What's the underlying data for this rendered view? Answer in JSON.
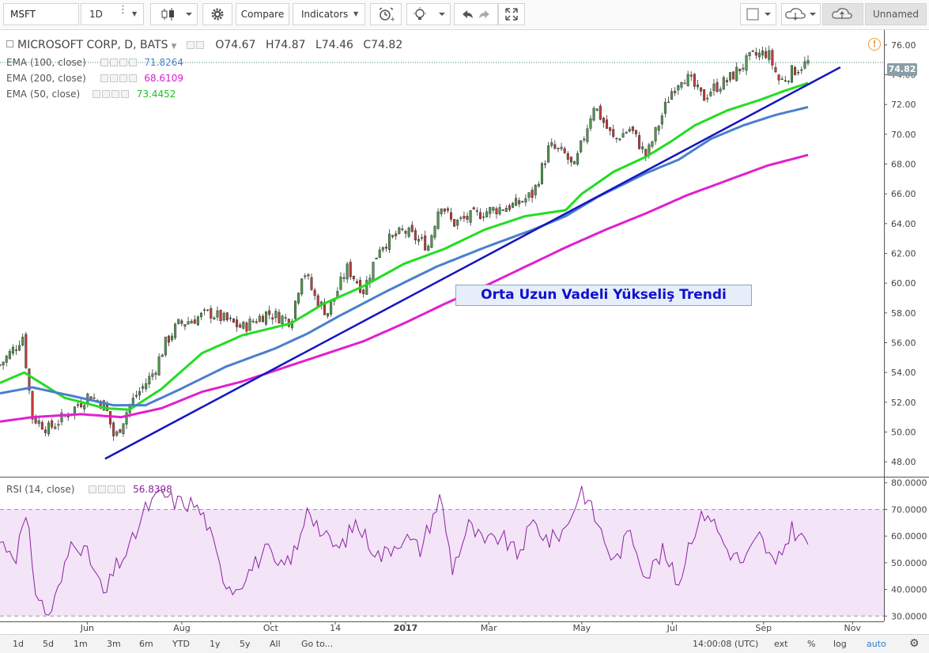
{
  "toolbar": {
    "symbol": "MSFT",
    "interval": "1D",
    "compare_label": "Compare",
    "indicators_label": "Indicators",
    "layout_name": "Unnamed"
  },
  "legend": {
    "main_title": "MICROSOFT CORP, D, BATS",
    "o_label": "O",
    "o_value": "74.67",
    "h_label": "H",
    "h_value": "74.87",
    "l_label": "L",
    "l_value": "74.46",
    "c_label": "C",
    "c_value": "74.82",
    "ema100_label": "EMA (100, close)",
    "ema100_value": "71.8264",
    "ema200_label": "EMA (200, close)",
    "ema200_value": "68.6109",
    "ema50_label": "EMA (50, close)",
    "ema50_value": "73.4452",
    "rsi_label": "RSI (14, close)",
    "rsi_value": "56.8398",
    "last_price_badge": "74.82"
  },
  "annotation": {
    "text": "Orta Uzun Vadeli Yükseliş Trendi"
  },
  "colors": {
    "ema50": "#22dd22",
    "ema100": "#4a7fcc",
    "ema200": "#e020d0",
    "trendline": "#1515c0",
    "rsi": "#8b22a0",
    "rsi_band": "#f3e4f8",
    "candle_up": "#4c9a4c",
    "candle_down": "#c33a3a"
  },
  "chart_data": [
    {
      "type": "candlestick",
      "title": "MICROSOFT CORP, D, BATS",
      "ylim": [
        47,
        77
      ],
      "yticks": [
        "48.00",
        "50.00",
        "52.00",
        "54.00",
        "56.00",
        "58.00",
        "60.00",
        "62.00",
        "64.00",
        "66.00",
        "68.00",
        "70.00",
        "72.00",
        "74.00",
        "76.00"
      ],
      "xticks": [
        "Jun",
        "Aug",
        "Oct",
        "14",
        "2017",
        "Mar",
        "May",
        "Jul",
        "Sep",
        "Nov"
      ],
      "price_anchors": {
        "x_frac": [
          0.0,
          0.02,
          0.028,
          0.04,
          0.06,
          0.09,
          0.11,
          0.13,
          0.142,
          0.16,
          0.19,
          0.205,
          0.22,
          0.26,
          0.28,
          0.3,
          0.33,
          0.36,
          0.375,
          0.39,
          0.405,
          0.43,
          0.45,
          0.47,
          0.5,
          0.53,
          0.545,
          0.56,
          0.6,
          0.64,
          0.66,
          0.68,
          0.7,
          0.71,
          0.735,
          0.75,
          0.76,
          0.78,
          0.8,
          0.83,
          0.845,
          0.855,
          0.87,
          0.88,
          0.9,
          0.93,
          0.95,
          0.965,
          0.98,
          1.0
        ],
        "close": [
          54.5,
          55.8,
          56.5,
          51.0,
          50.2,
          51.5,
          52.5,
          51.8,
          49.5,
          51.8,
          54.0,
          56.0,
          57.2,
          58.0,
          57.5,
          57.0,
          58.0,
          57.5,
          61.0,
          59.0,
          58.0,
          61.0,
          59.5,
          62.5,
          63.5,
          62.5,
          65.5,
          64.0,
          64.8,
          65.3,
          66.0,
          69.2,
          68.6,
          67.6,
          72.0,
          70.5,
          69.6,
          70.4,
          68.5,
          72.8,
          74.0,
          73.5,
          72.4,
          73.0,
          73.6,
          75.2,
          75.5,
          73.5,
          74.2,
          74.82
        ]
      },
      "series": [
        {
          "name": "EMA (50, close)",
          "x_frac": [
            0.0,
            0.03,
            0.08,
            0.13,
            0.16,
            0.2,
            0.25,
            0.3,
            0.36,
            0.4,
            0.45,
            0.5,
            0.55,
            0.6,
            0.65,
            0.7,
            0.72,
            0.76,
            0.8,
            0.83,
            0.86,
            0.9,
            0.94,
            0.97,
            1.0
          ],
          "values": [
            53.3,
            54.0,
            52.3,
            51.6,
            51.5,
            52.9,
            55.3,
            56.5,
            57.3,
            58.6,
            59.8,
            61.3,
            62.3,
            63.6,
            64.5,
            64.9,
            66.0,
            67.5,
            68.5,
            69.5,
            70.6,
            71.6,
            72.3,
            72.9,
            73.4452
          ]
        },
        {
          "name": "EMA (100, close)",
          "x_frac": [
            0.0,
            0.04,
            0.1,
            0.14,
            0.18,
            0.22,
            0.28,
            0.34,
            0.38,
            0.42,
            0.48,
            0.54,
            0.6,
            0.66,
            0.7,
            0.74,
            0.8,
            0.84,
            0.88,
            0.92,
            0.96,
            1.0
          ],
          "values": [
            52.6,
            53.0,
            52.3,
            51.8,
            51.8,
            52.8,
            54.4,
            55.6,
            56.6,
            57.8,
            59.5,
            61.1,
            62.4,
            63.6,
            64.5,
            65.8,
            67.4,
            68.3,
            69.7,
            70.6,
            71.3,
            71.8264
          ]
        },
        {
          "name": "EMA (200, close)",
          "x_frac": [
            0.0,
            0.04,
            0.1,
            0.15,
            0.2,
            0.25,
            0.3,
            0.35,
            0.4,
            0.45,
            0.5,
            0.55,
            0.6,
            0.65,
            0.7,
            0.75,
            0.8,
            0.85,
            0.9,
            0.95,
            1.0
          ],
          "values": [
            50.7,
            51.0,
            51.2,
            51.0,
            51.6,
            52.7,
            53.4,
            54.3,
            55.2,
            56.1,
            57.3,
            58.6,
            59.8,
            61.1,
            62.4,
            63.6,
            64.7,
            65.9,
            66.9,
            67.9,
            68.6109
          ]
        },
        {
          "name": "Trend line",
          "x_frac": [
            0.13,
            1.04
          ],
          "values": [
            48.2,
            74.5
          ]
        }
      ]
    },
    {
      "type": "line",
      "title": "RSI (14, close)",
      "ylim": [
        28,
        82
      ],
      "yticks": [
        "30.0000",
        "40.0000",
        "50.0000",
        "60.0000",
        "70.0000",
        "80.0000"
      ],
      "band": [
        30,
        70
      ],
      "series": [
        {
          "name": "RSI (14, close)",
          "x_frac": [
            0.0,
            0.02,
            0.03,
            0.035,
            0.045,
            0.06,
            0.075,
            0.09,
            0.11,
            0.13,
            0.142,
            0.16,
            0.18,
            0.2,
            0.215,
            0.24,
            0.255,
            0.275,
            0.29,
            0.33,
            0.345,
            0.37,
            0.38,
            0.4,
            0.42,
            0.44,
            0.47,
            0.5,
            0.52,
            0.545,
            0.56,
            0.58,
            0.6,
            0.62,
            0.64,
            0.66,
            0.68,
            0.7,
            0.72,
            0.735,
            0.76,
            0.78,
            0.8,
            0.82,
            0.84,
            0.855,
            0.875,
            0.9,
            0.92,
            0.94,
            0.96,
            0.98,
            1.0
          ],
          "values": [
            58,
            53,
            66,
            62,
            38,
            30,
            42,
            60,
            52,
            37,
            48,
            55,
            70,
            76,
            73,
            72,
            66,
            45,
            40,
            55,
            47,
            56,
            72,
            60,
            55,
            65,
            52,
            60,
            55,
            75,
            48,
            64,
            57,
            60,
            53,
            65,
            58,
            63,
            78,
            68,
            50,
            62,
            45,
            54,
            42,
            60,
            70,
            55,
            50,
            60,
            48,
            63,
            56.8398
          ]
        }
      ]
    }
  ],
  "bottom": {
    "ranges": [
      "1d",
      "5d",
      "1m",
      "3m",
      "6m",
      "YTD",
      "1y",
      "5y",
      "All"
    ],
    "goto_label": "Go to...",
    "clock": "14:00:08 (UTC)",
    "ext_label": "ext",
    "pct_label": "%",
    "log_label": "log",
    "auto_label": "auto"
  }
}
